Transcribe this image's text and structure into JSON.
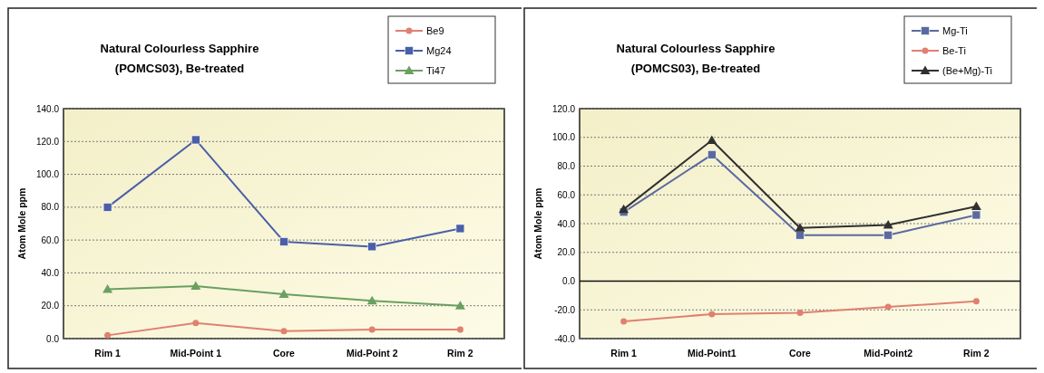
{
  "chart_data": [
    {
      "type": "line",
      "title": "Natural Colourless Sapphire",
      "subtitle": "(POMCS03), Be-treated",
      "ylabel": "Atom Mole ppm",
      "categories": [
        "Rim 1",
        "Mid-Point 1",
        "Core",
        "Mid-Point 2",
        "Rim 2"
      ],
      "series": [
        {
          "name": "Be9",
          "color": "#e08070",
          "marker": "circle",
          "values": [
            2,
            9.5,
            4.5,
            5.5,
            5.5
          ]
        },
        {
          "name": "Mg24",
          "color": "#4a5fa8",
          "marker": "square",
          "values": [
            80,
            121,
            59,
            56,
            67
          ]
        },
        {
          "name": "Ti47",
          "color": "#6aa060",
          "marker": "triangle",
          "values": [
            30,
            32,
            27,
            23,
            20
          ]
        }
      ],
      "ylim": [
        0,
        140
      ],
      "yticks": [
        {
          "value": 0,
          "label": "0.0"
        },
        {
          "value": 20,
          "label": "20.0"
        },
        {
          "value": 40,
          "label": "40.0"
        },
        {
          "value": 60,
          "label": "60.0"
        },
        {
          "value": 80,
          "label": "80.0"
        },
        {
          "value": 100,
          "label": "100.0"
        },
        {
          "value": 120,
          "label": "120.0"
        },
        {
          "value": 140,
          "label": "140.0"
        }
      ],
      "grid": "y",
      "legend": "top right"
    },
    {
      "type": "line",
      "title": "Natural Colourless Sapphire",
      "subtitle": "(POMCS03), Be-treated",
      "ylabel": "Atom Mole ppm",
      "categories": [
        "Rim 1",
        "Mid-Point1",
        "Core",
        "Mid-Point2",
        "Rim 2"
      ],
      "series": [
        {
          "name": "Mg-Ti",
          "color": "#5a6aa0",
          "marker": "square",
          "values": [
            48,
            88,
            32,
            32,
            46
          ]
        },
        {
          "name": "Be-Ti",
          "color": "#e08070",
          "marker": "circle",
          "values": [
            -28,
            -23,
            -22,
            -18,
            -14
          ]
        },
        {
          "name": "(Be+Mg)-Ti",
          "color": "#303030",
          "marker": "triangle",
          "values": [
            50,
            98,
            37,
            39,
            52
          ]
        }
      ],
      "ylim": [
        -40,
        120
      ],
      "yticks": [
        {
          "value": -40,
          "label": "-40.0"
        },
        {
          "value": -20,
          "label": "-20.0"
        },
        {
          "value": 0,
          "label": "0.0"
        },
        {
          "value": 20,
          "label": "20.0"
        },
        {
          "value": 40,
          "label": "40.0"
        },
        {
          "value": 60,
          "label": "60.0"
        },
        {
          "value": 80,
          "label": "80.0"
        },
        {
          "value": 100,
          "label": "100.0"
        },
        {
          "value": 120,
          "label": "120.0"
        }
      ],
      "grid": "y",
      "legend": "top right"
    }
  ]
}
